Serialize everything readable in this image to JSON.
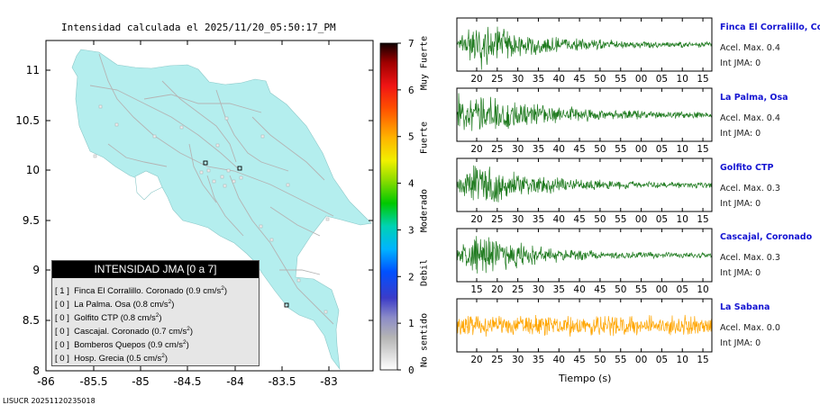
{
  "title": "Intensidad calculada el 2025/11/20_05:50:17_PM",
  "footer_id": "LISUCR 20251120235018",
  "colors": {
    "land": "#b4eeee",
    "road": "#b4b4b4",
    "trace_green": "#1e7a1e",
    "trace_orange": "#ffa500",
    "station_name": "#1414d2"
  },
  "map": {
    "x_ticks": [
      "-86",
      "-85.5",
      "-85",
      "-84.5",
      "-84",
      "-83.5",
      "-83"
    ],
    "y_ticks": [
      "11",
      "10.5",
      "10",
      "9.5",
      "9",
      "8.5",
      "8"
    ]
  },
  "colorbar": {
    "ticks": [
      "7",
      "6",
      "5",
      "4",
      "3",
      "2",
      "1",
      "0"
    ],
    "labels": [
      "Muy Fuerte",
      "Fuerte",
      "Moderado",
      "Debil",
      "No sentido"
    ]
  },
  "legend": {
    "title": "INTENSIDAD JMA [0 a 7]",
    "items": [
      {
        "level": "[ 1 ]",
        "text": "Finca El Corralillo. Coronado (0.9 cm/s",
        "sup": "2",
        "close": ")"
      },
      {
        "level": "[ 0 ]",
        "text": "La Palma. Osa (0.8 cm/s",
        "sup": "2",
        "close": ")"
      },
      {
        "level": "[ 0 ]",
        "text": "Golfito CTP (0.8 cm/s",
        "sup": "2",
        "close": ")"
      },
      {
        "level": "[ 0 ]",
        "text": "Cascajal. Coronado (0.7 cm/s",
        "sup": "2",
        "close": ")"
      },
      {
        "level": "[ 0 ]",
        "text": "Bomberos Quepos (0.9 cm/s",
        "sup": "2",
        "close": ")"
      },
      {
        "level": "[ 0 ]",
        "text": "Hosp. Grecia (0.5 cm/s",
        "sup": "2",
        "close": ")"
      }
    ]
  },
  "waveforms": {
    "xlabel": "Tiempo (s)",
    "panels": [
      {
        "name": "Finca El Corralillo, Coronado",
        "acel": "Acel. Max. 0.4",
        "int": "Int JMA: 0",
        "ticks": [
          "20",
          "25",
          "30",
          "35",
          "40",
          "45",
          "50",
          "55",
          "00",
          "05",
          "10",
          "15"
        ],
        "color": "green"
      },
      {
        "name": "La Palma, Osa",
        "acel": "Acel. Max. 0.4",
        "int": "Int JMA: 0",
        "ticks": [
          "20",
          "25",
          "30",
          "35",
          "40",
          "45",
          "50",
          "55",
          "00",
          "05",
          "10",
          "15"
        ],
        "color": "green"
      },
      {
        "name": "Golfito CTP",
        "acel": "Acel. Max. 0.3",
        "int": "Int JMA: 0",
        "ticks": [
          "20",
          "25",
          "30",
          "35",
          "40",
          "45",
          "50",
          "55",
          "00",
          "05",
          "10",
          "15"
        ],
        "color": "green"
      },
      {
        "name": "Cascajal, Coronado",
        "acel": "Acel. Max. 0.3",
        "int": "Int JMA: 0",
        "ticks": [
          "15",
          "20",
          "25",
          "30",
          "35",
          "40",
          "45",
          "50",
          "55",
          "00",
          "05",
          "10"
        ],
        "color": "green"
      },
      {
        "name": "La Sabana",
        "acel": "Acel. Max. 0.0",
        "int": "Int JMA: 0",
        "ticks": [
          "20",
          "25",
          "30",
          "35",
          "40",
          "45",
          "50",
          "55",
          "00",
          "05",
          "10",
          "15"
        ],
        "color": "orange"
      }
    ]
  }
}
